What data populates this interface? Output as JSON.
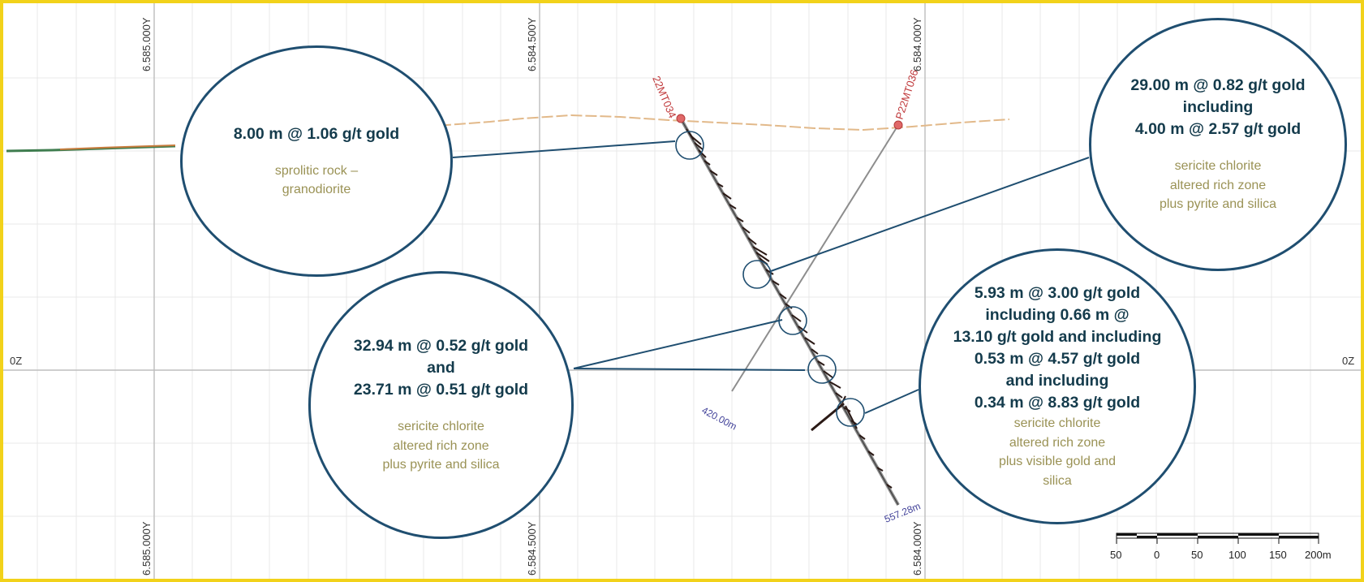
{
  "grid": {
    "northing_top": [
      "6.585.000Y",
      "6.584.500Y",
      "6.584.000Y"
    ],
    "northing_bottom": [
      "6.585.000Y",
      "6.584.500Y",
      "6.584.000Y"
    ],
    "elevation_left": "0Z",
    "elevation_right": "0Z"
  },
  "drill_holes": [
    {
      "name": "22MT034",
      "end_depth": "557.28m"
    },
    {
      "name": "P22MT036",
      "end_depth": "420.00m"
    }
  ],
  "callouts": {
    "c1": {
      "headline": [
        "8.00 m @ 1.06 g/t gold"
      ],
      "description": [
        "sprolitic rock –",
        "granodiorite"
      ]
    },
    "c2": {
      "headline": [
        "29.00 m @ 0.82 g/t gold",
        "including",
        "4.00 m @ 2.57 g/t gold"
      ],
      "description": [
        "sericite chlorite",
        "altered rich zone",
        "plus pyrite and silica"
      ]
    },
    "c3": {
      "headline": [
        "32.94 m @ 0.52 g/t gold",
        "and",
        "23.71 m @ 0.51 g/t gold"
      ],
      "description": [
        "sericite chlorite",
        "altered rich zone",
        "plus pyrite and silica"
      ]
    },
    "c4": {
      "headline": [
        "5.93 m @ 3.00 g/t gold",
        "including 0.66 m @",
        "13.10 g/t gold and including",
        "0.53 m @ 4.57 g/t gold",
        "and including",
        "0.34 m @ 8.83 g/t gold"
      ],
      "description": [
        "sericite chlorite",
        "altered rich zone",
        "plus visible gold and",
        "silica"
      ]
    }
  },
  "scale_bar": {
    "labels": [
      "50",
      "0",
      "50",
      "100",
      "150",
      "200m"
    ]
  },
  "colors": {
    "frame": "#f2d21a",
    "callout_border": "#1f4e70",
    "headline": "#143b4c",
    "description": "#9a9255",
    "hole_label": "#c0393b",
    "depth_label": "#43439a"
  }
}
